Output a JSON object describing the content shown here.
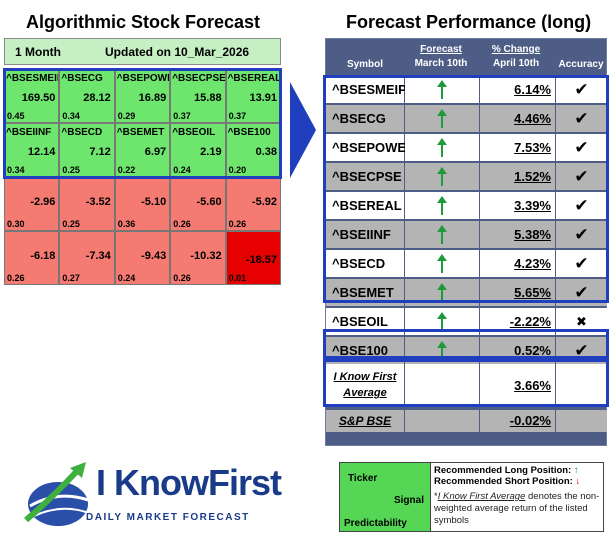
{
  "titles": {
    "left": "Algorithmic Stock Forecast",
    "right": "Forecast Performance (long)"
  },
  "forecast": {
    "period": "1 Month",
    "updated": "Updated on 10_Mar_2026",
    "cells": [
      {
        "symbol": "^BSESMEIPO",
        "value": "169.50",
        "predictability": "0.45",
        "color": "green"
      },
      {
        "symbol": "^BSECG",
        "value": "28.12",
        "predictability": "0.34",
        "color": "green"
      },
      {
        "symbol": "^BSEPOWER",
        "value": "16.89",
        "predictability": "0.29",
        "color": "green"
      },
      {
        "symbol": "^BSECPSE",
        "value": "15.88",
        "predictability": "0.37",
        "color": "green"
      },
      {
        "symbol": "^BSEREAL",
        "value": "13.91",
        "predictability": "0.37",
        "color": "green"
      },
      {
        "symbol": "^BSEIINF",
        "value": "12.14",
        "predictability": "0.34",
        "color": "green"
      },
      {
        "symbol": "^BSECD",
        "value": "7.12",
        "predictability": "0.25",
        "color": "green"
      },
      {
        "symbol": "^BSEMET",
        "value": "6.97",
        "predictability": "0.22",
        "color": "green"
      },
      {
        "symbol": "^BSEOIL",
        "value": "2.19",
        "predictability": "0.24",
        "color": "green"
      },
      {
        "symbol": "^BSE100",
        "value": "0.38",
        "predictability": "0.20",
        "color": "green"
      },
      {
        "symbol": "",
        "value": "-2.96",
        "predictability": "0.30",
        "color": "red"
      },
      {
        "symbol": "",
        "value": "-3.52",
        "predictability": "0.25",
        "color": "red"
      },
      {
        "symbol": "",
        "value": "-5.10",
        "predictability": "0.36",
        "color": "red"
      },
      {
        "symbol": "",
        "value": "-5.60",
        "predictability": "0.26",
        "color": "red"
      },
      {
        "symbol": "",
        "value": "-5.92",
        "predictability": "0.26",
        "color": "red"
      },
      {
        "symbol": "",
        "value": "-6.18",
        "predictability": "0.26",
        "color": "red"
      },
      {
        "symbol": "",
        "value": "-7.34",
        "predictability": "0.27",
        "color": "red"
      },
      {
        "symbol": "",
        "value": "-9.43",
        "predictability": "0.24",
        "color": "red"
      },
      {
        "symbol": "",
        "value": "-10.32",
        "predictability": "0.26",
        "color": "red"
      },
      {
        "symbol": "",
        "value": "-18.57",
        "predictability": "0.01",
        "color": "darkred"
      }
    ]
  },
  "performance": {
    "headers": {
      "symbol": "Symbol",
      "forecast_line1": "Forecast",
      "forecast_line2": "March 10th",
      "change_line1": "% Change",
      "change_line2": "April 10th",
      "accuracy": "Accuracy"
    },
    "rows": [
      {
        "symbol": "^BSESMEIPO",
        "forecast": "up",
        "change": "6.14%",
        "accuracy": "✔",
        "shade": "light"
      },
      {
        "symbol": "^BSECG",
        "forecast": "up",
        "change": "4.46%",
        "accuracy": "✔",
        "shade": "dark"
      },
      {
        "symbol": "^BSEPOWER",
        "forecast": "up",
        "change": "7.53%",
        "accuracy": "✔",
        "shade": "light"
      },
      {
        "symbol": "^BSECPSE",
        "forecast": "up",
        "change": "1.52%",
        "accuracy": "✔",
        "shade": "dark"
      },
      {
        "symbol": "^BSEREAL",
        "forecast": "up",
        "change": "3.39%",
        "accuracy": "✔",
        "shade": "light"
      },
      {
        "symbol": "^BSEIINF",
        "forecast": "up",
        "change": "5.38%",
        "accuracy": "✔",
        "shade": "dark"
      },
      {
        "symbol": "^BSECD",
        "forecast": "up",
        "change": "4.23%",
        "accuracy": "✔",
        "shade": "light"
      },
      {
        "symbol": "^BSEMET",
        "forecast": "up",
        "change": "5.65%",
        "accuracy": "✔",
        "shade": "dark"
      },
      {
        "symbol": "^BSEOIL",
        "forecast": "up",
        "change": "-2.22%",
        "accuracy": "✖",
        "shade": "light"
      },
      {
        "symbol": "^BSE100",
        "forecast": "up",
        "change": "0.52%",
        "accuracy": "✔",
        "shade": "dark"
      }
    ],
    "average": {
      "label": "I Know First Average",
      "change": "3.66%"
    },
    "benchmark": {
      "label": "S&P BSE",
      "change": "-0.02%"
    }
  },
  "logo": {
    "name": "I KnowFirst",
    "tagline": "DAILY MARKET FORECAST"
  },
  "legend": {
    "ticker": "Ticker",
    "signal": "Signal",
    "predictability": "Predictability",
    "long": "Recommended Long Position:",
    "short": "Recommended Short Position:",
    "avg_term": "I Know First Average",
    "avg_desc": " denotes the non-weighted average return of the listed symbols"
  },
  "colors": {
    "green_cell": "#6ee66e",
    "red_cell": "#f47a72",
    "dark_red_cell": "#e60000",
    "highlight_border": "#1f3fbf",
    "table_header": "#4d5d85",
    "up_arrow": "#1f9a3a"
  }
}
